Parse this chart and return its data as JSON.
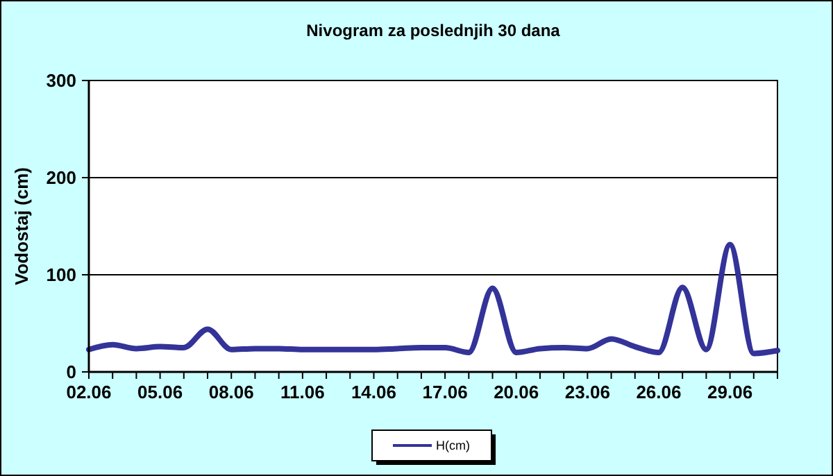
{
  "chart_data": {
    "type": "line",
    "title": "Nivogram za poslednjih 30 dana",
    "ylabel": "Vodostaj (cm)",
    "x": [
      "--06-02",
      "--06-03",
      "--06-04",
      "--06-05",
      "--06-06",
      "--06-07",
      "--06-08",
      "--06-09",
      "--06-10",
      "--06-11",
      "--06-12",
      "--06-13",
      "--06-14",
      "--06-15",
      "--06-16",
      "--06-17",
      "--06-18",
      "--06-19",
      "--06-20",
      "--06-21",
      "--06-22",
      "--06-23",
      "--06-24",
      "--06-25",
      "--06-26",
      "--06-27",
      "--06-28",
      "--06-29",
      "--06-30",
      "--07-01"
    ],
    "series": [
      {
        "name": "H(cm)",
        "color": "#333399",
        "values": [
          23,
          28,
          24,
          26,
          25,
          44,
          23,
          24,
          24,
          23,
          23,
          23,
          23,
          24,
          25,
          25,
          20,
          86,
          20,
          24,
          25,
          24,
          34,
          26,
          20,
          87,
          23,
          131,
          19,
          22
        ]
      }
    ],
    "xlim": [
      "--06-02",
      "--07-01"
    ],
    "xticks": [
      {
        "value": "--06-02",
        "label": "02.06"
      },
      {
        "value": "--06-03",
        "label": null
      },
      {
        "value": "--06-04",
        "label": null
      },
      {
        "value": "--06-05",
        "label": "05.06"
      },
      {
        "value": "--06-06",
        "label": null
      },
      {
        "value": "--06-07",
        "label": null
      },
      {
        "value": "--06-08",
        "label": "08.06"
      },
      {
        "value": "--06-09",
        "label": null
      },
      {
        "value": "--06-10",
        "label": null
      },
      {
        "value": "--06-11",
        "label": "11.06"
      },
      {
        "value": "--06-12",
        "label": null
      },
      {
        "value": "--06-13",
        "label": null
      },
      {
        "value": "--06-14",
        "label": "14.06"
      },
      {
        "value": "--06-15",
        "label": null
      },
      {
        "value": "--06-16",
        "label": null
      },
      {
        "value": "--06-17",
        "label": "17.06"
      },
      {
        "value": "--06-18",
        "label": null
      },
      {
        "value": "--06-19",
        "label": null
      },
      {
        "value": "--06-20",
        "label": "20.06"
      },
      {
        "value": "--06-21",
        "label": null
      },
      {
        "value": "--06-22",
        "label": null
      },
      {
        "value": "--06-23",
        "label": "23.06"
      },
      {
        "value": "--06-24",
        "label": null
      },
      {
        "value": "--06-25",
        "label": null
      },
      {
        "value": "--06-26",
        "label": "26.06"
      },
      {
        "value": "--06-27",
        "label": null
      },
      {
        "value": "--06-28",
        "label": null
      },
      {
        "value": "--06-29",
        "label": "29.06"
      },
      {
        "value": "--06-30",
        "label": null
      },
      {
        "value": "--07-01",
        "label": null
      }
    ],
    "ylim": [
      0,
      300
    ],
    "yticks": [
      0,
      100,
      200,
      300
    ],
    "grid": "y",
    "legend": "bottom",
    "line_style": "solid",
    "marker": "none"
  }
}
